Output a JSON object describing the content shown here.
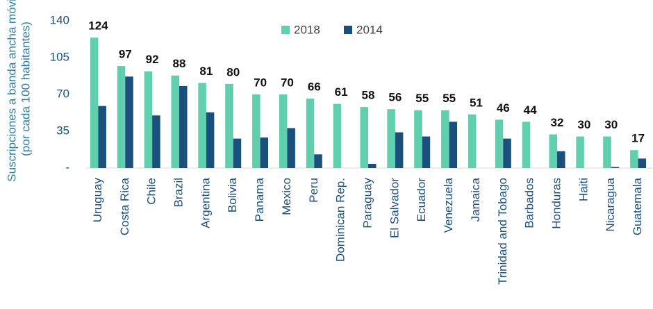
{
  "chart_data": {
    "type": "bar",
    "ylabel": [
      "Suscripciones a banda ancha móvil",
      "(por cada 100 habitantes)"
    ],
    "categories": [
      "Uruguay",
      "Costa Rica",
      "Chile",
      "Brazil",
      "Argentina",
      "Bolivia",
      "Panama",
      "Mexico",
      "Peru",
      "Dominican Rep.",
      "Paraguay",
      "El Salvador",
      "Ecuador",
      "Venezuela",
      "Jamaica",
      "Trinidad and Tobago",
      "Barbados",
      "Honduras",
      "Haiti",
      "Nicaragua",
      "Guatemala"
    ],
    "series": [
      {
        "name": "2018",
        "color": "#5fcfae",
        "values": [
          124,
          97,
          92,
          88,
          81,
          80,
          70,
          70,
          66,
          61,
          58,
          56,
          55,
          55,
          51,
          46,
          44,
          32,
          30,
          30,
          17
        ]
      },
      {
        "name": "2014",
        "color": "#1a4f7e",
        "values": [
          59,
          87,
          50,
          78,
          53,
          28,
          29,
          38,
          13,
          null,
          4,
          34,
          30,
          44,
          null,
          28,
          null,
          16,
          null,
          1,
          9
        ]
      }
    ],
    "ylim": [
      0,
      140
    ],
    "yticks": [
      {
        "value": 0,
        "label": "-"
      },
      35,
      70,
      105,
      140
    ],
    "legend": "top"
  }
}
